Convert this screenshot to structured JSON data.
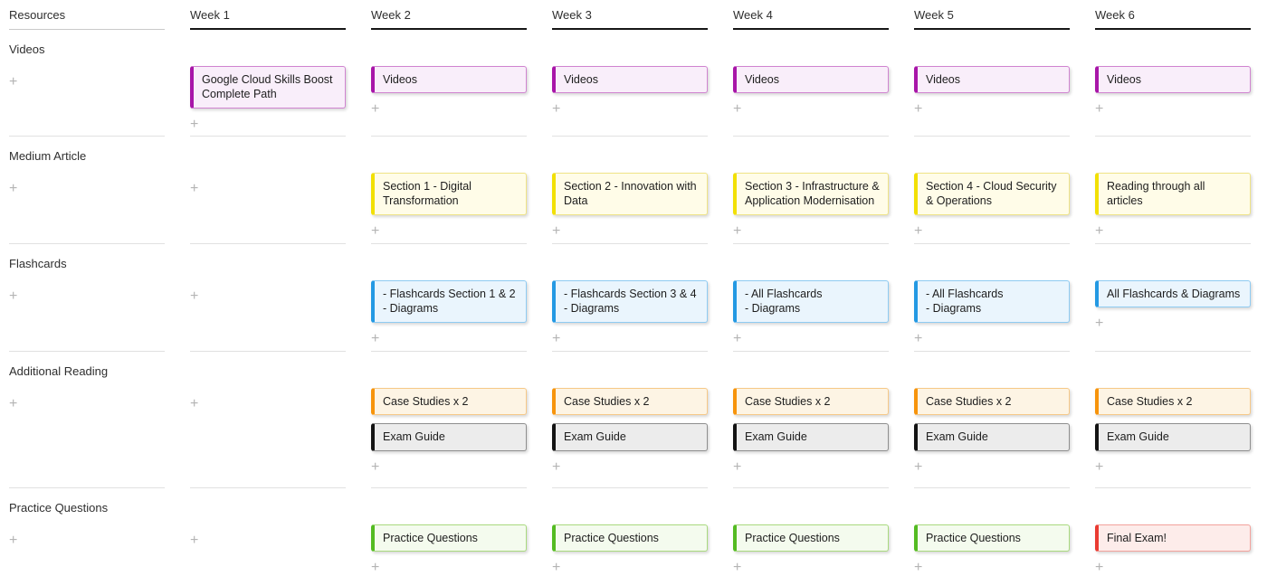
{
  "plus_label": "+",
  "palette": {
    "ui": {
      "week_header_line": "#161616",
      "resources_header_line": "#c9c9c9",
      "row_divider": "#e1e1e1",
      "plus_icon": "#b4b4b4"
    },
    "cards": {
      "purple": {
        "accent": "#a816a8",
        "bg": "#f9eefa",
        "border": "#d084d0"
      },
      "yellow": {
        "accent": "#f2e004",
        "bg": "#fffce8",
        "border": "#efe387"
      },
      "blue": {
        "accent": "#2499e3",
        "bg": "#eaf5fd",
        "border": "#8fcbf2"
      },
      "orange": {
        "accent": "#f7940c",
        "bg": "#fdf4e4",
        "border": "#f6c887"
      },
      "black": {
        "accent": "#141414",
        "bg": "#ececec",
        "border": "#8f8f8f"
      },
      "green": {
        "accent": "#54bb22",
        "bg": "#f4fbee",
        "border": "#a9da7f"
      },
      "red": {
        "accent": "#ea3b32",
        "bg": "#fdecea",
        "border": "#f3a29d"
      }
    }
  },
  "board": {
    "columns": [
      {
        "header": "Resources",
        "cells": [
          {
            "label": "Videos",
            "cards": []
          },
          {
            "label": "Medium Article",
            "cards": []
          },
          {
            "label": "Flashcards",
            "cards": []
          },
          {
            "label": "Additional Reading",
            "cards": []
          },
          {
            "label": "Practice Questions",
            "cards": []
          }
        ]
      },
      {
        "header": "Week 1",
        "cells": [
          {
            "cards": [
              {
                "title": "Google Cloud Skills Boost Complete Path",
                "color": "purple"
              }
            ]
          },
          {
            "cards": []
          },
          {
            "cards": []
          },
          {
            "cards": []
          },
          {
            "cards": []
          }
        ]
      },
      {
        "header": "Week 2",
        "cells": [
          {
            "cards": [
              {
                "title": "Videos",
                "color": "purple"
              }
            ]
          },
          {
            "cards": [
              {
                "title": "Section 1 - Digital Transformation",
                "color": "yellow"
              }
            ]
          },
          {
            "cards": [
              {
                "title": "- Flashcards Section 1 & 2\n- Diagrams",
                "color": "blue"
              }
            ]
          },
          {
            "cards": [
              {
                "title": "Case Studies x 2",
                "color": "orange"
              },
              {
                "title": "Exam Guide",
                "color": "black"
              }
            ]
          },
          {
            "cards": [
              {
                "title": "Practice Questions",
                "color": "green"
              }
            ]
          }
        ]
      },
      {
        "header": "Week 3",
        "cells": [
          {
            "cards": [
              {
                "title": "Videos",
                "color": "purple"
              }
            ]
          },
          {
            "cards": [
              {
                "title": "Section 2 - Innovation with Data",
                "color": "yellow"
              }
            ]
          },
          {
            "cards": [
              {
                "title": "- Flashcards Section 3 & 4\n- Diagrams",
                "color": "blue"
              }
            ]
          },
          {
            "cards": [
              {
                "title": "Case Studies x 2",
                "color": "orange"
              },
              {
                "title": "Exam Guide",
                "color": "black"
              }
            ]
          },
          {
            "cards": [
              {
                "title": "Practice Questions",
                "color": "green"
              }
            ]
          }
        ]
      },
      {
        "header": "Week 4",
        "cells": [
          {
            "cards": [
              {
                "title": "Videos",
                "color": "purple"
              }
            ]
          },
          {
            "cards": [
              {
                "title": "Section 3 - Infrastructure & Application Modernisation",
                "color": "yellow"
              }
            ]
          },
          {
            "cards": [
              {
                "title": "- All Flashcards\n- Diagrams",
                "color": "blue"
              }
            ]
          },
          {
            "cards": [
              {
                "title": "Case Studies x 2",
                "color": "orange"
              },
              {
                "title": "Exam Guide",
                "color": "black"
              }
            ]
          },
          {
            "cards": [
              {
                "title": "Practice Questions",
                "color": "green"
              }
            ]
          }
        ]
      },
      {
        "header": "Week 5",
        "cells": [
          {
            "cards": [
              {
                "title": "Videos",
                "color": "purple"
              }
            ]
          },
          {
            "cards": [
              {
                "title": "Section 4 - Cloud Security & Operations",
                "color": "yellow"
              }
            ]
          },
          {
            "cards": [
              {
                "title": "- All Flashcards\n- Diagrams",
                "color": "blue"
              }
            ]
          },
          {
            "cards": [
              {
                "title": "Case Studies x 2",
                "color": "orange"
              },
              {
                "title": "Exam Guide",
                "color": "black"
              }
            ]
          },
          {
            "cards": [
              {
                "title": "Practice Questions",
                "color": "green"
              }
            ]
          }
        ]
      },
      {
        "header": "Week 6",
        "cells": [
          {
            "cards": [
              {
                "title": "Videos",
                "color": "purple"
              }
            ]
          },
          {
            "cards": [
              {
                "title": "Reading through all articles",
                "color": "yellow"
              }
            ]
          },
          {
            "cards": [
              {
                "title": "All Flashcards & Diagrams",
                "color": "blue"
              }
            ]
          },
          {
            "cards": [
              {
                "title": "Case Studies x 2",
                "color": "orange"
              },
              {
                "title": "Exam Guide",
                "color": "black"
              }
            ]
          },
          {
            "cards": [
              {
                "title": "Final Exam!",
                "color": "red"
              }
            ]
          }
        ]
      }
    ]
  }
}
